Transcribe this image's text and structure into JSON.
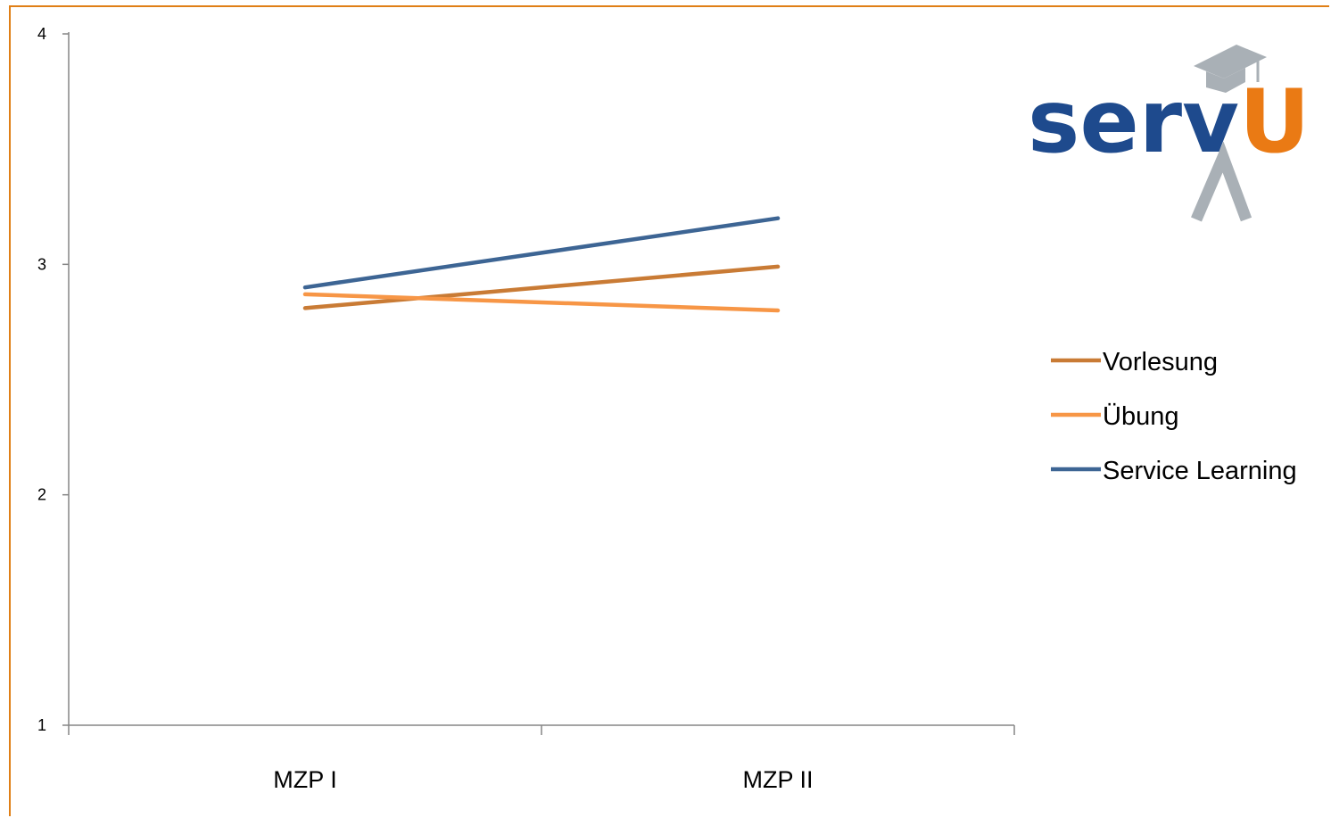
{
  "logo": {
    "text_dark": "serv",
    "text_accent": "U",
    "color_dark": "#1e4a8d",
    "color_accent": "#ea7a14",
    "color_figure": "#a9b0b6"
  },
  "frame_color": "#e07f16",
  "chart_data": {
    "type": "line",
    "categories": [
      "MZP I",
      "MZP II"
    ],
    "ylim": [
      1,
      4
    ],
    "yticks": [
      "1",
      "2",
      "3",
      "4"
    ],
    "xlabel": "",
    "ylabel": "",
    "title": "",
    "grid": false,
    "legend_position": "right",
    "series": [
      {
        "name": "Vorlesung",
        "values": [
          2.81,
          2.99
        ],
        "color": "#c97b35"
      },
      {
        "name": "Übung",
        "values": [
          2.87,
          2.8
        ],
        "color": "#f79646"
      },
      {
        "name": "Service Learning",
        "values": [
          2.9,
          3.2
        ],
        "color": "#3d6594"
      }
    ]
  }
}
